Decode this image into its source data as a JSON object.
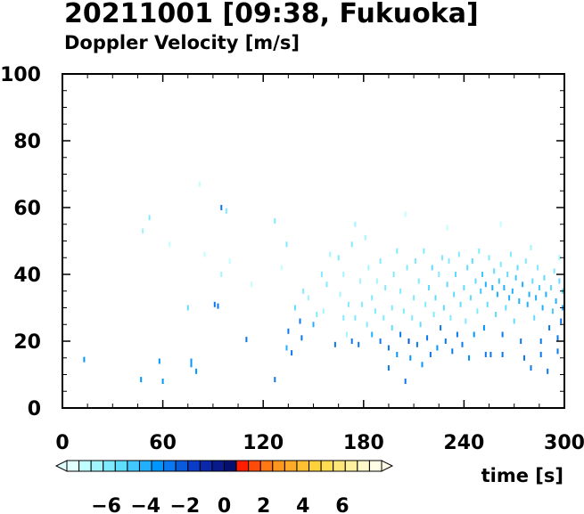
{
  "title": "20211001 [09:38, Fukuoka]",
  "subtitle": "Doppler Velocity [m/s]",
  "chart_data": {
    "type": "scatter",
    "title": "20211001 [09:38, Fukuoka]",
    "subtitle": "Doppler Velocity [m/s]",
    "xlabel": "time [s]",
    "ylabel": "",
    "xlim": [
      0,
      300
    ],
    "ylim": [
      0,
      100
    ],
    "xticks": [
      "0",
      "60",
      "120",
      "180",
      "240",
      "300"
    ],
    "yticks": [
      "0",
      "20",
      "40",
      "60",
      "80",
      "100"
    ],
    "grid": false,
    "colorbar": {
      "ticks": [
        "−6",
        "−4",
        "−2",
        "0",
        "2",
        "4",
        "6"
      ],
      "tick_values": [
        -6,
        -4,
        -2,
        0,
        2,
        4,
        6
      ],
      "range": [
        -8,
        8
      ],
      "colors": [
        "#e0ffff",
        "#c0ffff",
        "#a0f5ff",
        "#80ebff",
        "#60dcff",
        "#40c8ff",
        "#20b0ff",
        "#0096ff",
        "#0a78f0",
        "#0a5adc",
        "#0a3cc8",
        "#0a28aa",
        "#081a8c",
        "#05106e",
        "#ff1e00",
        "#ff4b0a",
        "#ff7814",
        "#ff961e",
        "#ffaa28",
        "#ffc032",
        "#ffd23c",
        "#ffdc50",
        "#ffe678",
        "#fff0a0",
        "#fff8c8",
        "#fffde6"
      ]
    },
    "points": [
      [
        13,
        14.5,
        -3.5
      ],
      [
        47,
        8.5,
        -3.5
      ],
      [
        48,
        53,
        -6.5
      ],
      [
        52,
        57,
        -6
      ],
      [
        58,
        14,
        -3.5
      ],
      [
        60,
        8,
        -3.5
      ],
      [
        64,
        49,
        -7
      ],
      [
        75,
        30,
        -5
      ],
      [
        77,
        14,
        -3.5
      ],
      [
        77,
        13,
        -3.5
      ],
      [
        80,
        11,
        -3.5
      ],
      [
        82,
        67,
        -7
      ],
      [
        85,
        46,
        -7
      ],
      [
        91,
        31,
        -3
      ],
      [
        93,
        30.5,
        -3
      ],
      [
        95,
        40,
        -6.5
      ],
      [
        95,
        60,
        -3
      ],
      [
        98,
        59,
        -6
      ],
      [
        100,
        44,
        -7
      ],
      [
        110,
        20.5,
        -2.5
      ],
      [
        113,
        37,
        -7
      ],
      [
        127,
        8.5,
        -2.5
      ],
      [
        127,
        56,
        -6
      ],
      [
        131,
        42,
        -7
      ],
      [
        134,
        49,
        -6
      ],
      [
        134,
        18,
        -4
      ],
      [
        135,
        23,
        -3
      ],
      [
        137,
        16.5,
        -3
      ],
      [
        139,
        30,
        -5
      ],
      [
        142,
        26,
        -2.5
      ],
      [
        143,
        21,
        -2.5
      ],
      [
        144,
        35,
        -6
      ],
      [
        147,
        33,
        -6.5
      ],
      [
        150,
        25,
        -4
      ],
      [
        152,
        28,
        -6
      ],
      [
        155,
        40,
        -6
      ],
      [
        156,
        29,
        -6.5
      ],
      [
        158,
        37,
        -6
      ],
      [
        160,
        46,
        -6.5
      ],
      [
        163,
        19,
        -3
      ],
      [
        165,
        45,
        -6
      ],
      [
        166,
        34,
        -6.5
      ],
      [
        168,
        40,
        -6.5
      ],
      [
        168,
        27,
        -6
      ],
      [
        170,
        22,
        -6.5
      ],
      [
        171,
        31,
        -6
      ],
      [
        173,
        20,
        -3
      ],
      [
        173,
        49,
        -6
      ],
      [
        175,
        55,
        -6.5
      ],
      [
        175,
        27,
        -6
      ],
      [
        177,
        19,
        -3
      ],
      [
        178,
        38,
        -6.5
      ],
      [
        179,
        31,
        -6
      ],
      [
        181,
        51,
        -6.5
      ],
      [
        182,
        25,
        -6
      ],
      [
        183,
        42,
        -6.5
      ],
      [
        185,
        22,
        -4
      ],
      [
        185,
        33,
        -6
      ],
      [
        187,
        29,
        -6
      ],
      [
        188,
        38,
        -6.5
      ],
      [
        190,
        20,
        -3
      ],
      [
        190,
        44,
        -6
      ],
      [
        192,
        27,
        -6
      ],
      [
        193,
        36,
        -6
      ],
      [
        195,
        12,
        -3
      ],
      [
        195,
        18,
        -3
      ],
      [
        197,
        24,
        -5
      ],
      [
        197,
        30,
        -6
      ],
      [
        198,
        40,
        -6
      ],
      [
        200,
        16,
        -3.5
      ],
      [
        200,
        47,
        -6
      ],
      [
        202,
        22,
        -3
      ],
      [
        202,
        35,
        -6
      ],
      [
        204,
        29,
        -6
      ],
      [
        205,
        8,
        -3
      ],
      [
        206,
        42,
        -6
      ],
      [
        207,
        20,
        -2
      ],
      [
        208,
        15,
        -3.5
      ],
      [
        209,
        27,
        -6
      ],
      [
        210,
        33,
        -6
      ],
      [
        211,
        44,
        -6
      ],
      [
        212,
        19,
        -2.5
      ],
      [
        213,
        38,
        -6
      ],
      [
        214,
        25,
        -5
      ],
      [
        215,
        13,
        -3.5
      ],
      [
        216,
        47,
        -6
      ],
      [
        217,
        31,
        -6
      ],
      [
        218,
        21,
        -3
      ],
      [
        219,
        36,
        -5
      ],
      [
        220,
        16,
        -3
      ],
      [
        221,
        42,
        -5.5
      ],
      [
        222,
        28,
        -6
      ],
      [
        223,
        33,
        -5
      ],
      [
        224,
        18,
        -3.5
      ],
      [
        225,
        40,
        -6
      ],
      [
        226,
        24,
        -3
      ],
      [
        227,
        45,
        -6
      ],
      [
        228,
        30,
        -5
      ],
      [
        229,
        20,
        -3
      ],
      [
        230,
        37,
        -5
      ],
      [
        231,
        44,
        -6
      ],
      [
        232,
        27,
        -6
      ],
      [
        233,
        17,
        -3
      ],
      [
        234,
        34,
        -5
      ],
      [
        235,
        40,
        -5
      ],
      [
        236,
        22,
        -3
      ],
      [
        237,
        46,
        -6
      ],
      [
        238,
        31,
        -5.5
      ],
      [
        239,
        19,
        -3
      ],
      [
        240,
        36,
        -5
      ],
      [
        241,
        26,
        -6
      ],
      [
        242,
        42,
        -5.5
      ],
      [
        243,
        15,
        -3.5
      ],
      [
        244,
        33,
        -5
      ],
      [
        245,
        44,
        -5
      ],
      [
        246,
        22,
        -3.5
      ],
      [
        247,
        38,
        -5
      ],
      [
        248,
        29,
        -6
      ],
      [
        249,
        47,
        -6
      ],
      [
        250,
        35,
        -4.5
      ],
      [
        251,
        40,
        -4.5
      ],
      [
        252,
        24,
        -3.5
      ],
      [
        253,
        37,
        -4
      ],
      [
        254,
        31,
        -5
      ],
      [
        255,
        45,
        -6
      ],
      [
        256,
        16,
        -3
      ],
      [
        257,
        36,
        -4
      ],
      [
        258,
        41,
        -5
      ],
      [
        259,
        28,
        -5.5
      ],
      [
        260,
        34,
        -4
      ],
      [
        261,
        38,
        -4.5
      ],
      [
        262,
        43,
        -6
      ],
      [
        263,
        22,
        -3
      ],
      [
        264,
        36,
        -4
      ],
      [
        265,
        30,
        -5
      ],
      [
        266,
        40,
        -5
      ],
      [
        267,
        33,
        -4
      ],
      [
        268,
        46,
        -6
      ],
      [
        269,
        35,
        -4
      ],
      [
        270,
        26,
        -5
      ],
      [
        271,
        39,
        -4.5
      ],
      [
        272,
        42,
        -5
      ],
      [
        273,
        32,
        -4
      ],
      [
        274,
        20,
        -3
      ],
      [
        275,
        37,
        -4
      ],
      [
        276,
        15,
        -3
      ],
      [
        277,
        44,
        -6
      ],
      [
        278,
        31,
        -4
      ],
      [
        279,
        34,
        -4
      ],
      [
        280,
        12,
        -3
      ],
      [
        281,
        38,
        -5
      ],
      [
        282,
        27,
        -5
      ],
      [
        283,
        33,
        -4
      ],
      [
        284,
        42,
        -6
      ],
      [
        285,
        36,
        -4.5
      ],
      [
        286,
        20,
        -2.5
      ],
      [
        287,
        30,
        -4
      ],
      [
        288,
        39,
        -5
      ],
      [
        289,
        34,
        -4
      ],
      [
        290,
        11,
        -3
      ],
      [
        291,
        24,
        -3
      ],
      [
        292,
        36,
        -5
      ],
      [
        293,
        29,
        -4.5
      ],
      [
        294,
        41,
        -6
      ],
      [
        295,
        32,
        -4
      ],
      [
        296,
        17,
        -3
      ],
      [
        297,
        38,
        -5
      ],
      [
        298,
        26,
        -3
      ],
      [
        299,
        30,
        -4
      ],
      [
        299,
        35,
        -5
      ],
      [
        253,
        16,
        -3
      ],
      [
        263,
        16,
        -3
      ],
      [
        286,
        16,
        -3
      ],
      [
        300,
        16,
        -3
      ],
      [
        296,
        21,
        -2.5
      ],
      [
        297,
        45,
        -6.5
      ],
      [
        262,
        55,
        -7
      ],
      [
        280,
        48,
        -6.5
      ],
      [
        230,
        54,
        -7
      ],
      [
        205,
        58,
        -7
      ]
    ]
  }
}
